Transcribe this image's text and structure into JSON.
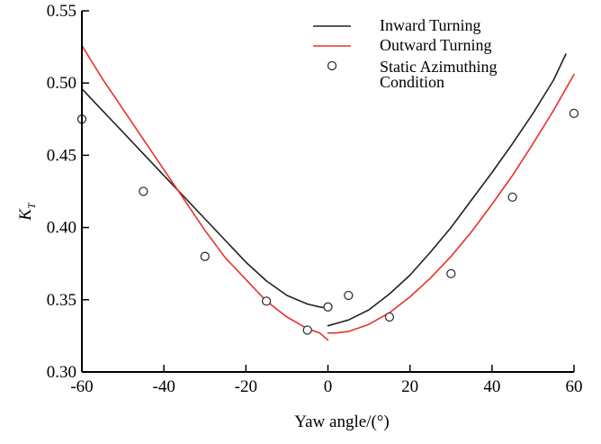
{
  "chart_data": {
    "type": "line",
    "title": "",
    "xlabel": "Yaw angle/(°)",
    "ylabel_main": "K",
    "ylabel_sub": "T",
    "xlim": [
      -60,
      60
    ],
    "ylim": [
      0.3,
      0.55
    ],
    "x_ticks": [
      -60,
      -40,
      -20,
      0,
      20,
      40,
      60
    ],
    "y_ticks": [
      0.3,
      0.35,
      0.4,
      0.45,
      0.5,
      0.55
    ],
    "x_tick_labels": [
      "-60",
      "-40",
      "-20",
      "0",
      "20",
      "40",
      "60"
    ],
    "y_tick_labels": [
      "0.30",
      "0.35",
      "0.40",
      "0.45",
      "0.50",
      "0.55"
    ],
    "grid": false,
    "legend_position": "top-right",
    "series": [
      {
        "name": "Inward Turning",
        "kind": "line",
        "color": "#222222",
        "segments": [
          {
            "x": [
              -60,
              -55,
              -50,
              -45,
              -40,
              -35,
              -30,
              -25,
              -20,
              -15,
              -10,
              -5,
              -2,
              0
            ],
            "y": [
              0.496,
              0.481,
              0.466,
              0.451,
              0.436,
              0.421,
              0.406,
              0.391,
              0.376,
              0.363,
              0.353,
              0.347,
              0.345,
              0.344
            ]
          },
          {
            "x": [
              0,
              5,
              10,
              15,
              20,
              25,
              30,
              35,
              40,
              45,
              50,
              55,
              58
            ],
            "y": [
              0.332,
              0.336,
              0.343,
              0.354,
              0.367,
              0.383,
              0.4,
              0.419,
              0.438,
              0.458,
              0.479,
              0.502,
              0.52
            ]
          }
        ]
      },
      {
        "name": "Outward Turning",
        "kind": "line",
        "color": "#e8312a",
        "segments": [
          {
            "x": [
              -60,
              -55,
              -50,
              -45,
              -40,
              -35,
              -30,
              -25,
              -20,
              -15,
              -10,
              -5,
              -2,
              0
            ],
            "y": [
              0.526,
              0.503,
              0.482,
              0.461,
              0.44,
              0.419,
              0.398,
              0.379,
              0.364,
              0.349,
              0.338,
              0.33,
              0.327,
              0.322
            ]
          },
          {
            "x": [
              0,
              2,
              5,
              10,
              15,
              20,
              25,
              30,
              35,
              40,
              45,
              50,
              55,
              60
            ],
            "y": [
              0.327,
              0.327,
              0.328,
              0.333,
              0.341,
              0.352,
              0.365,
              0.38,
              0.397,
              0.416,
              0.436,
              0.458,
              0.481,
              0.506
            ]
          }
        ]
      },
      {
        "name": "Static Azimuthing Condition",
        "kind": "scatter",
        "color": "#333333",
        "x": [
          -60,
          -45,
          -30,
          -15,
          -5,
          0,
          5,
          15,
          30,
          45,
          60
        ],
        "y": [
          0.475,
          0.425,
          0.38,
          0.349,
          0.329,
          0.345,
          0.353,
          0.338,
          0.368,
          0.421,
          0.479
        ]
      }
    ],
    "legend": [
      {
        "label_lines": [
          "Inward Turning"
        ]
      },
      {
        "label_lines": [
          "Outward Turning"
        ]
      },
      {
        "label_lines": [
          "Static Azimuthing",
          "Condition"
        ]
      }
    ]
  }
}
